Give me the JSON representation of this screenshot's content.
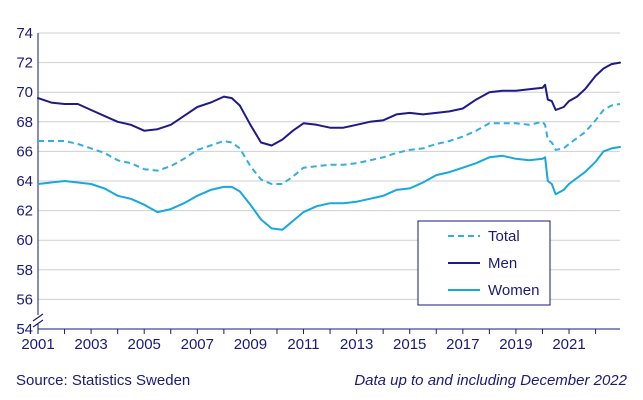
{
  "chart_data": {
    "type": "line",
    "title": "",
    "xlabel": "",
    "ylabel": "",
    "ylim": [
      54,
      74
    ],
    "xlim": [
      2001,
      2022.92
    ],
    "y_ticks": [
      54,
      56,
      58,
      60,
      62,
      64,
      66,
      68,
      70,
      72,
      74
    ],
    "y_tick_labels": [
      "54",
      "56",
      "58",
      "60",
      "62",
      "64",
      "66",
      "68",
      "70",
      "72",
      "74"
    ],
    "x_ticks": [
      2001,
      2003,
      2005,
      2007,
      2009,
      2011,
      2013,
      2015,
      2017,
      2019,
      2021
    ],
    "x_tick_labels": [
      "2001",
      "2003",
      "2005",
      "2007",
      "2009",
      "2011",
      "2013",
      "2015",
      "2017",
      "2019",
      "2021"
    ],
    "grid": "horizontal",
    "axis_break": true,
    "legend_position": "bottom-right",
    "series": [
      {
        "name": "Total",
        "style": "dashed",
        "color": "#33aee2",
        "x": [
          2001,
          2001.5,
          2002,
          2002.5,
          2003,
          2003.5,
          2004,
          2004.5,
          2005,
          2005.5,
          2006,
          2006.5,
          2007,
          2007.5,
          2008,
          2008.3,
          2008.6,
          2009,
          2009.4,
          2009.8,
          2010.2,
          2010.6,
          2011,
          2011.5,
          2012,
          2012.5,
          2013,
          2013.5,
          2014,
          2014.5,
          2015,
          2015.5,
          2016,
          2016.5,
          2017,
          2017.5,
          2018,
          2018.5,
          2019,
          2019.5,
          2020,
          2020.1,
          2020.2,
          2020.35,
          2020.5,
          2020.8,
          2021,
          2021.3,
          2021.6,
          2022,
          2022.3,
          2022.6,
          2022.92
        ],
        "values": [
          66.7,
          66.7,
          66.7,
          66.5,
          66.2,
          65.9,
          65.4,
          65.2,
          64.8,
          64.7,
          65.0,
          65.5,
          66.1,
          66.4,
          66.7,
          66.6,
          66.2,
          65.0,
          64.1,
          63.8,
          63.8,
          64.3,
          64.9,
          65.0,
          65.1,
          65.1,
          65.2,
          65.4,
          65.6,
          65.9,
          66.1,
          66.2,
          66.5,
          66.7,
          67.0,
          67.4,
          67.9,
          67.9,
          67.9,
          67.8,
          68.0,
          67.8,
          66.8,
          66.6,
          66.1,
          66.2,
          66.5,
          66.9,
          67.3,
          68.1,
          68.8,
          69.1,
          69.2
        ]
      },
      {
        "name": "Men",
        "style": "solid",
        "color": "#1e1a8a",
        "x": [
          2001,
          2001.5,
          2002,
          2002.5,
          2003,
          2003.5,
          2004,
          2004.5,
          2005,
          2005.5,
          2006,
          2006.5,
          2007,
          2007.5,
          2008,
          2008.3,
          2008.6,
          2009,
          2009.4,
          2009.8,
          2010.2,
          2010.6,
          2011,
          2011.5,
          2012,
          2012.5,
          2013,
          2013.5,
          2014,
          2014.5,
          2015,
          2015.5,
          2016,
          2016.5,
          2017,
          2017.5,
          2018,
          2018.5,
          2019,
          2019.5,
          2020,
          2020.1,
          2020.2,
          2020.35,
          2020.5,
          2020.8,
          2021,
          2021.3,
          2021.6,
          2022,
          2022.3,
          2022.6,
          2022.92
        ],
        "values": [
          69.6,
          69.3,
          69.2,
          69.2,
          68.8,
          68.4,
          68.0,
          67.8,
          67.4,
          67.5,
          67.8,
          68.4,
          69.0,
          69.3,
          69.7,
          69.6,
          69.1,
          67.8,
          66.6,
          66.4,
          66.8,
          67.4,
          67.9,
          67.8,
          67.6,
          67.6,
          67.8,
          68.0,
          68.1,
          68.5,
          68.6,
          68.5,
          68.6,
          68.7,
          68.9,
          69.5,
          70.0,
          70.1,
          70.1,
          70.2,
          70.3,
          70.5,
          69.5,
          69.4,
          68.8,
          69.0,
          69.4,
          69.7,
          70.2,
          71.1,
          71.6,
          71.9,
          72.0
        ]
      },
      {
        "name": "Women",
        "style": "solid",
        "color": "#17a8df",
        "x": [
          2001,
          2001.5,
          2002,
          2002.5,
          2003,
          2003.5,
          2004,
          2004.5,
          2005,
          2005.5,
          2006,
          2006.5,
          2007,
          2007.5,
          2008,
          2008.3,
          2008.6,
          2009,
          2009.4,
          2009.8,
          2010.2,
          2010.6,
          2011,
          2011.5,
          2012,
          2012.5,
          2013,
          2013.5,
          2014,
          2014.5,
          2015,
          2015.5,
          2016,
          2016.5,
          2017,
          2017.5,
          2018,
          2018.5,
          2019,
          2019.5,
          2020,
          2020.1,
          2020.2,
          2020.35,
          2020.5,
          2020.8,
          2021,
          2021.3,
          2021.6,
          2022,
          2022.3,
          2022.6,
          2022.92
        ],
        "values": [
          63.8,
          63.9,
          64.0,
          63.9,
          63.8,
          63.5,
          63.0,
          62.8,
          62.4,
          61.9,
          62.1,
          62.5,
          63.0,
          63.4,
          63.6,
          63.6,
          63.3,
          62.4,
          61.4,
          60.8,
          60.7,
          61.3,
          61.9,
          62.3,
          62.5,
          62.5,
          62.6,
          62.8,
          63.0,
          63.4,
          63.5,
          63.9,
          64.4,
          64.6,
          64.9,
          65.2,
          65.6,
          65.7,
          65.5,
          65.4,
          65.5,
          65.6,
          64.0,
          63.8,
          63.1,
          63.4,
          63.8,
          64.2,
          64.6,
          65.3,
          66.0,
          66.2,
          66.3
        ]
      }
    ]
  },
  "footer": {
    "source": "Source: Statistics Sweden",
    "note": "Data up to and including December 2022"
  }
}
